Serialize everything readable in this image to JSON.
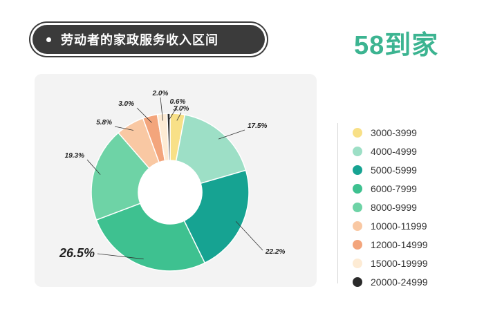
{
  "header": {
    "title": "劳动者的家政服务收入区间",
    "logo_text": "58到家"
  },
  "chart_data": {
    "type": "pie",
    "donut": true,
    "title": "劳动者的家政服务收入区间",
    "legend_position": "right",
    "series": [
      {
        "name": "3000-3999",
        "value": 3.0,
        "label": "3.0%",
        "color": "#f8e087"
      },
      {
        "name": "4000-4999",
        "value": 17.5,
        "label": "17.5%",
        "color": "#9ddfc6"
      },
      {
        "name": "5000-5999",
        "value": 22.2,
        "label": "22.2%",
        "color": "#16a392"
      },
      {
        "name": "6000-7999",
        "value": 26.5,
        "label": "26.5%",
        "color": "#3ec190"
      },
      {
        "name": "8000-9999",
        "value": 19.3,
        "label": "19.3%",
        "color": "#6ed3a6"
      },
      {
        "name": "10000-11999",
        "value": 5.8,
        "label": "5.8%",
        "color": "#f9c8a3"
      },
      {
        "name": "12000-14999",
        "value": 3.0,
        "label": "3.0%",
        "color": "#f3a57c"
      },
      {
        "name": "15000-19999",
        "value": 2.0,
        "label": "2.0%",
        "color": "#fdebd4"
      },
      {
        "name": "20000-24999",
        "value": 0.6,
        "label": "0.6%",
        "color": "#2a2a2a"
      }
    ]
  }
}
